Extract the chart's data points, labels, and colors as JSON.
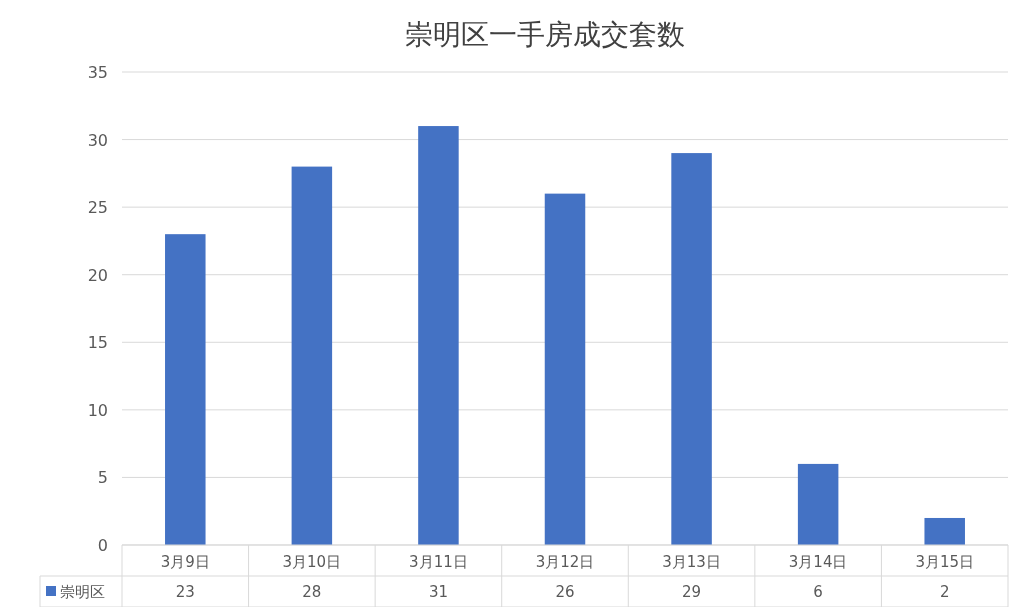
{
  "chart_data": {
    "type": "bar",
    "title": "崇明区一手房成交套数",
    "categories": [
      "3月9日",
      "3月10日",
      "3月11日",
      "3月12日",
      "3月13日",
      "3月14日",
      "3月15日"
    ],
    "series": [
      {
        "name": "崇明区",
        "color": "#4472c4",
        "values": [
          23,
          28,
          31,
          26,
          29,
          6,
          2
        ]
      }
    ],
    "ylim": [
      0,
      35
    ],
    "yticks": [
      0,
      5,
      10,
      15,
      20,
      25,
      30,
      35
    ],
    "grid": "y",
    "data_labels": true,
    "legend": "bottom"
  }
}
